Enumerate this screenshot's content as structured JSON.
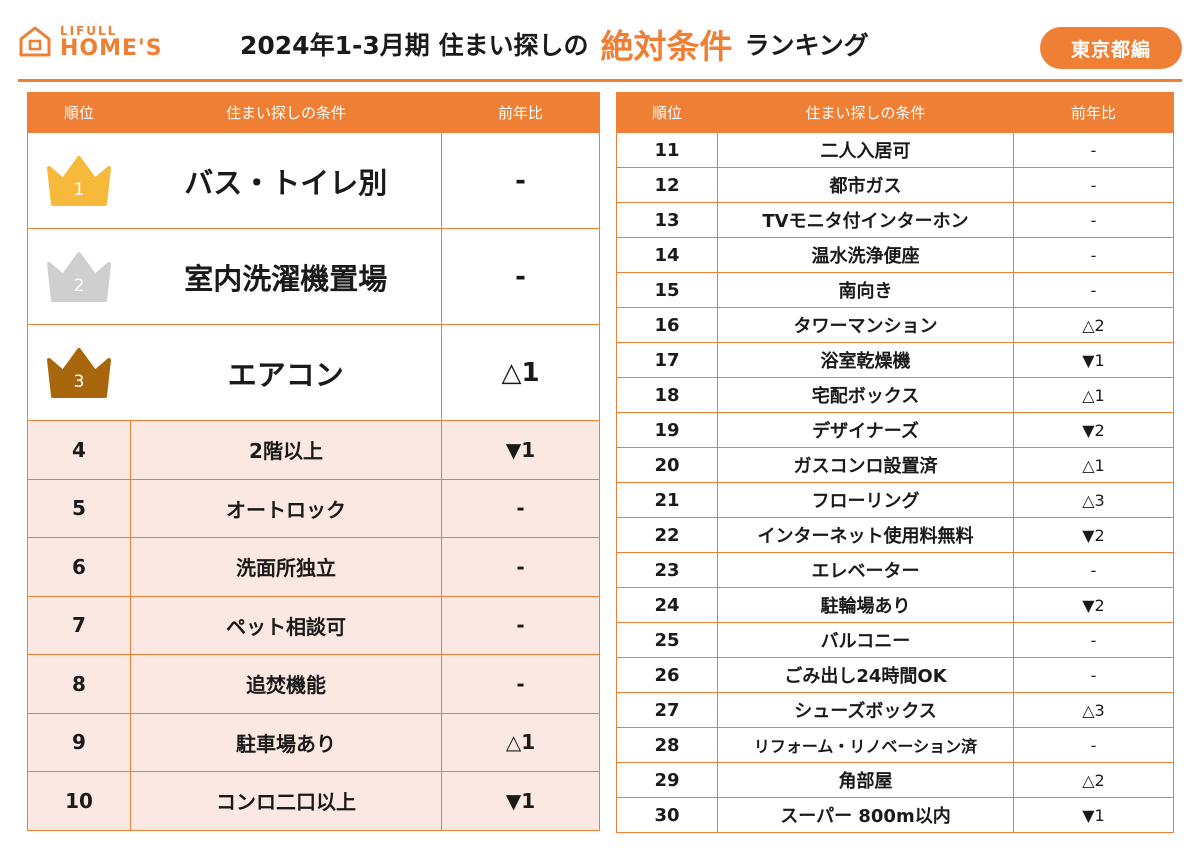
{
  "header": {
    "logo_top": "LIFULL",
    "logo_main": "HOME'S",
    "title_part1": "2024年1-3月期 住まい探しの",
    "title_highlight": "絶対条件",
    "title_part3": "ランキング",
    "region_badge": "東京都編",
    "accent_color": "#ee7f34"
  },
  "columns": {
    "rank": "順位",
    "condition": "住まい探しの条件",
    "change": "前年比"
  },
  "top3": [
    {
      "rank": "1",
      "condition": "バス・トイレ別",
      "change": "-",
      "crown_color": "#f6b93b",
      "crown_icon": "gold-crown-icon"
    },
    {
      "rank": "2",
      "condition": "室内洗濯機置場",
      "change": "-",
      "crown_color": "#cfcfcf",
      "crown_icon": "silver-crown-icon"
    },
    {
      "rank": "3",
      "condition": "エアコン",
      "change": "△1",
      "crown_color": "#a8670c",
      "crown_icon": "bronze-crown-icon"
    }
  ],
  "left_rows": [
    {
      "rank": "4",
      "condition": "2階以上",
      "change": "▼1"
    },
    {
      "rank": "5",
      "condition": "オートロック",
      "change": "-"
    },
    {
      "rank": "6",
      "condition": "洗面所独立",
      "change": "-"
    },
    {
      "rank": "7",
      "condition": "ペット相談可",
      "change": "-"
    },
    {
      "rank": "8",
      "condition": "追焚機能",
      "change": "-"
    },
    {
      "rank": "9",
      "condition": "駐車場あり",
      "change": "△1"
    },
    {
      "rank": "10",
      "condition": "コンロ二口以上",
      "change": "▼1"
    }
  ],
  "right_rows": [
    {
      "rank": "11",
      "condition": "二人入居可",
      "change": "-"
    },
    {
      "rank": "12",
      "condition": "都市ガス",
      "change": "-"
    },
    {
      "rank": "13",
      "condition": "TVモニタ付インターホン",
      "change": "-"
    },
    {
      "rank": "14",
      "condition": "温水洗浄便座",
      "change": "-"
    },
    {
      "rank": "15",
      "condition": "南向き",
      "change": "-"
    },
    {
      "rank": "16",
      "condition": "タワーマンション",
      "change": "△2"
    },
    {
      "rank": "17",
      "condition": "浴室乾燥機",
      "change": "▼1"
    },
    {
      "rank": "18",
      "condition": "宅配ボックス",
      "change": "△1"
    },
    {
      "rank": "19",
      "condition": "デザイナーズ",
      "change": "▼2"
    },
    {
      "rank": "20",
      "condition": "ガスコンロ設置済",
      "change": "△1"
    },
    {
      "rank": "21",
      "condition": "フローリング",
      "change": "△3"
    },
    {
      "rank": "22",
      "condition": "インターネット使用料無料",
      "change": "▼2"
    },
    {
      "rank": "23",
      "condition": "エレベーター",
      "change": "-"
    },
    {
      "rank": "24",
      "condition": "駐輪場あり",
      "change": "▼2"
    },
    {
      "rank": "25",
      "condition": "バルコニー",
      "change": "-"
    },
    {
      "rank": "26",
      "condition": "ごみ出し24時間OK",
      "change": "-"
    },
    {
      "rank": "27",
      "condition": "シューズボックス",
      "change": "△3"
    },
    {
      "rank": "28",
      "condition": "リフォーム・リノベーション済",
      "change": "-"
    },
    {
      "rank": "29",
      "condition": "角部屋",
      "change": "△2"
    },
    {
      "rank": "30",
      "condition": "スーパー 800m以内",
      "change": "▼1"
    }
  ]
}
